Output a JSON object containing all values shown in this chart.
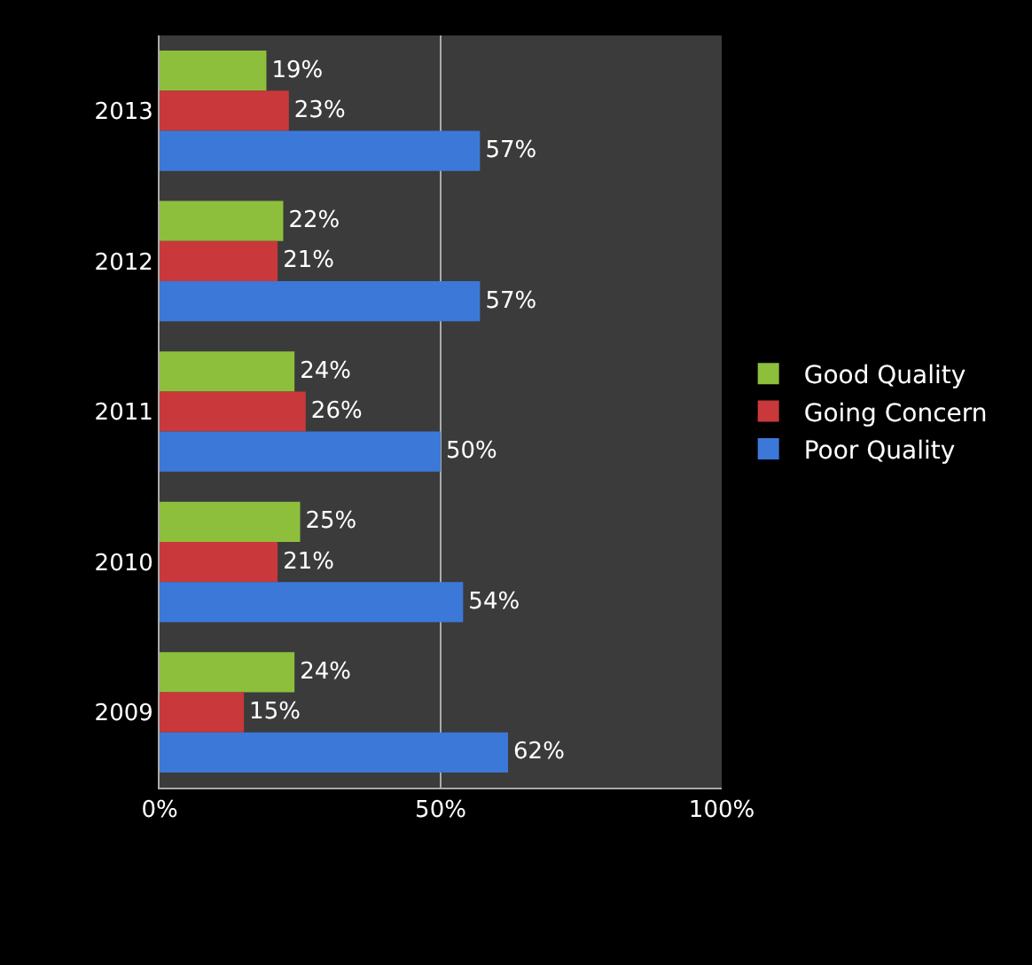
{
  "chart_data": {
    "type": "bar",
    "orientation": "horizontal",
    "categories": [
      "2013",
      "2012",
      "2011",
      "2010",
      "2009"
    ],
    "series": [
      {
        "name": "Good Quality",
        "color": "#8dbf3c",
        "values": [
          19,
          22,
          24,
          25,
          24
        ],
        "value_labels": [
          "19%",
          "22%",
          "24%",
          "25%",
          "24%"
        ]
      },
      {
        "name": "Going Concern",
        "color": "#c9383a",
        "values": [
          23,
          21,
          26,
          21,
          15
        ],
        "value_labels": [
          "23%",
          "21%",
          "26%",
          "21%",
          "15%"
        ]
      },
      {
        "name": "Poor Quality",
        "color": "#3c78d8",
        "values": [
          57,
          57,
          50,
          54,
          62
        ],
        "value_labels": [
          "57%",
          "57%",
          "50%",
          "54%",
          "62%"
        ]
      }
    ],
    "xlim": [
      0,
      100
    ],
    "xticks": [
      {
        "value": 0,
        "label": "0%"
      },
      {
        "value": 50,
        "label": "50%"
      },
      {
        "value": 100,
        "label": "100%"
      }
    ],
    "grid": "x",
    "legend": "right"
  }
}
